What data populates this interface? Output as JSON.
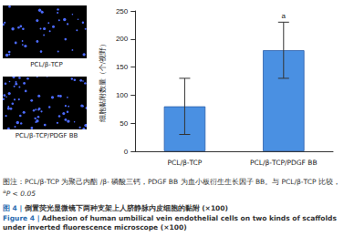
{
  "panels": [
    {
      "label": "PCL/β-TCP"
    },
    {
      "label": "PCL/β-TCP/PDGF BB"
    }
  ],
  "chart_data": {
    "type": "bar",
    "y_label": "细胞黏附数量（个/视野）",
    "categories": [
      "PCL/β-TCP",
      "PCL/β-TCP/PDGF BB"
    ],
    "values": [
      80,
      180
    ],
    "errors": [
      50,
      50
    ],
    "color": "#4a90e2",
    "ylim": [
      0,
      250
    ],
    "yticks": [
      0,
      50,
      100,
      150,
      200,
      250
    ],
    "grid": false,
    "annotations": [
      {
        "x": "PCL/β-TCP/PDGF BB",
        "text": "a"
      }
    ]
  },
  "caption": {
    "note": "图注：PCL/β-TCP 为聚己内酯 /β- 磷酸三钙，PDGF BB 为血小板衍生生长因子 BB。与 PCL/β-TCP 比较，",
    "note_sup": "a",
    "note_end": "P < 0.05",
    "title_zh_prefix": "图 4 |",
    "title_zh": "倒置荧光显微镜下两种支架上人脐静脉内皮细胞的黏附 (×100)",
    "title_en_prefix": "Figure 4 |",
    "title_en": "Adhesion of human umbilical vein endothelial cells on two kinds of scaffolds under inverted fluorescence microscope (×100)"
  }
}
